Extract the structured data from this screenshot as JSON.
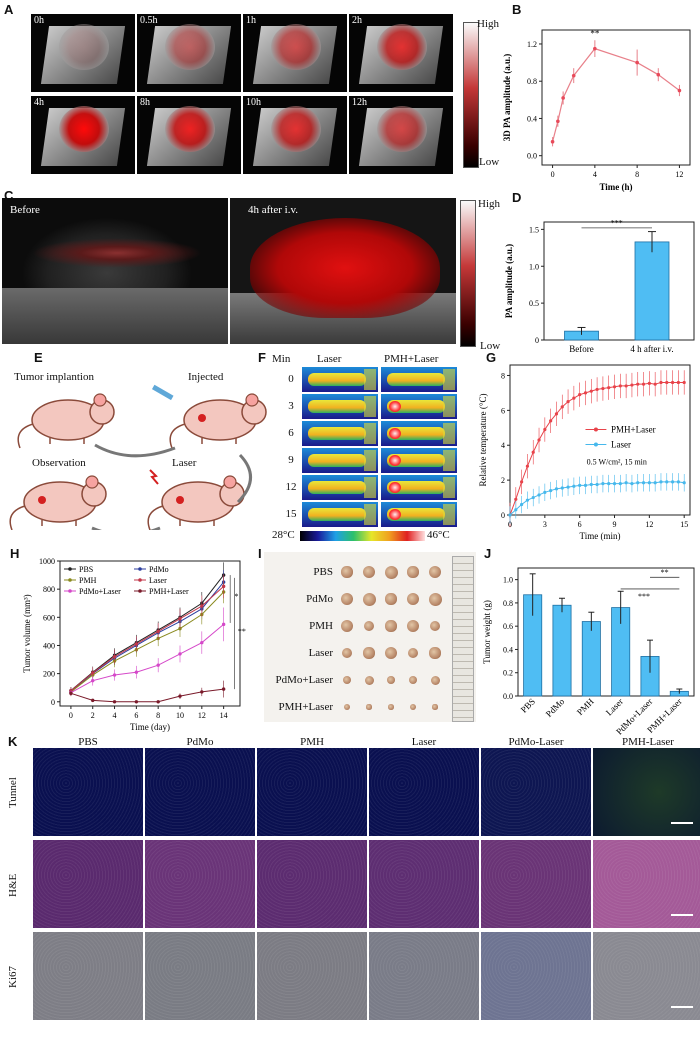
{
  "panel_letters": {
    "A": "A",
    "B": "B",
    "C": "C",
    "D": "D",
    "E": "E",
    "F": "F",
    "G": "G",
    "H": "H",
    "I": "I",
    "J": "J",
    "K": "K"
  },
  "colorbar": {
    "high": "High",
    "low": "Low",
    "high2": "High",
    "low2": "Low"
  },
  "panelA": {
    "times": [
      "0h",
      "0.5h",
      "1h",
      "2h",
      "4h",
      "8h",
      "10h",
      "12h"
    ]
  },
  "panelC": {
    "before": "Before",
    "after": "4h after i.v."
  },
  "panelE": {
    "tumor": "Tumor implantion",
    "injected": "Injected",
    "observation": "Observation",
    "laser": "Laser"
  },
  "panelF": {
    "min": "Min",
    "col1": "Laser",
    "col2": "PMH+Laser",
    "rows": [
      "0",
      "3",
      "6",
      "9",
      "12",
      "15"
    ],
    "tmin": "28°C",
    "tmax": "46°C"
  },
  "panelI": {
    "rows": [
      "PBS",
      "PdMo",
      "PMH",
      "Laser",
      "PdMo+Laser",
      "PMH+Laser"
    ]
  },
  "panelK": {
    "cols": [
      "PBS",
      "PdMo",
      "PMH",
      "Laser",
      "PdMo-Laser",
      "PMH-Laser"
    ],
    "rows": [
      "Tunnel",
      "H&E",
      "Ki67"
    ]
  },
  "chart_data": [
    {
      "panel": "B",
      "type": "line",
      "xlabel": "Time (h)",
      "ylabel": "3D PA amplitude (a.u.)",
      "x": [
        0,
        0.5,
        1,
        2,
        4,
        8,
        10,
        12
      ],
      "y": [
        0.15,
        0.37,
        0.62,
        0.86,
        1.15,
        1.0,
        0.87,
        0.7
      ],
      "err": [
        0.05,
        0.06,
        0.07,
        0.08,
        0.09,
        0.14,
        0.07,
        0.06
      ],
      "xlim": [
        -1,
        13
      ],
      "ylim": [
        -0.1,
        1.35
      ],
      "xticks": [
        "0",
        "4",
        "8",
        "12"
      ],
      "yticks": [
        "0.0",
        "0.4",
        "0.8",
        "1.2"
      ],
      "annotation": "**"
    },
    {
      "panel": "D",
      "type": "bar",
      "categories": [
        "Before",
        "4 h after i.v."
      ],
      "values": [
        0.12,
        1.33
      ],
      "err": [
        0.05,
        0.14
      ],
      "ylabel": "PA amplitude (a.u.)",
      "ylim": [
        0,
        1.6
      ],
      "yticks": [
        "0",
        "0.5",
        "1.0",
        "1.5"
      ],
      "annotation": "***"
    },
    {
      "panel": "G",
      "type": "line",
      "xlabel": "Time (min)",
      "ylabel": "Relative temperature (°C)",
      "note": "0.5 W/cm², 15 min",
      "xlim": [
        0,
        15.5
      ],
      "ylim": [
        0,
        8.6
      ],
      "xticks": [
        "0",
        "3",
        "6",
        "9",
        "12",
        "15"
      ],
      "yticks": [
        "0",
        "2",
        "4",
        "6",
        "8"
      ],
      "series": [
        {
          "name": "PMH+Laser",
          "color": "#e8434a",
          "x": [
            0,
            0.5,
            1,
            1.5,
            2,
            2.5,
            3,
            3.5,
            4,
            4.5,
            5,
            5.5,
            6,
            6.5,
            7,
            7.5,
            8,
            8.5,
            9,
            9.5,
            10,
            10.5,
            11,
            11.5,
            12,
            12.5,
            13,
            13.5,
            14,
            14.5,
            15
          ],
          "y": [
            0,
            0.9,
            1.9,
            2.8,
            3.6,
            4.3,
            4.9,
            5.4,
            5.8,
            6.2,
            6.5,
            6.7,
            6.9,
            7.0,
            7.1,
            7.2,
            7.25,
            7.3,
            7.35,
            7.4,
            7.4,
            7.45,
            7.5,
            7.5,
            7.55,
            7.5,
            7.6,
            7.6,
            7.6,
            7.6,
            7.6
          ],
          "err": 0.7
        },
        {
          "name": "Laser",
          "color": "#46b8ec",
          "x": [
            0,
            0.5,
            1,
            1.5,
            2,
            2.5,
            3,
            3.5,
            4,
            4.5,
            5,
            5.5,
            6,
            6.5,
            7,
            7.5,
            8,
            8.5,
            9,
            9.5,
            10,
            10.5,
            11,
            11.5,
            12,
            12.5,
            13,
            13.5,
            14,
            14.5,
            15
          ],
          "y": [
            0,
            0.3,
            0.6,
            0.85,
            1.0,
            1.15,
            1.3,
            1.4,
            1.5,
            1.55,
            1.6,
            1.65,
            1.7,
            1.7,
            1.75,
            1.75,
            1.8,
            1.8,
            1.8,
            1.8,
            1.85,
            1.8,
            1.85,
            1.85,
            1.85,
            1.85,
            1.9,
            1.9,
            1.9,
            1.9,
            1.85
          ],
          "err": 0.5
        }
      ]
    },
    {
      "panel": "H",
      "type": "line",
      "xlabel": "Time (day)",
      "ylabel": "Tumor volume (mm³)",
      "x": [
        0,
        2,
        4,
        6,
        8,
        10,
        12,
        14
      ],
      "xlim": [
        -1,
        15.5
      ],
      "ylim": [
        -30,
        1000
      ],
      "xticks": [
        "0",
        "2",
        "4",
        "6",
        "8",
        "10",
        "12",
        "14"
      ],
      "yticks": [
        "0",
        "200",
        "400",
        "600",
        "800",
        "1000"
      ],
      "annotations": [
        "*",
        "**"
      ],
      "series": [
        {
          "name": "PBS",
          "color": "#222222",
          "marker": "square",
          "y": [
            80,
            210,
            330,
            420,
            510,
            600,
            700,
            900
          ],
          "err": [
            25,
            40,
            50,
            55,
            60,
            70,
            80,
            90
          ]
        },
        {
          "name": "PdMo",
          "color": "#2c3e9e",
          "marker": "triangle",
          "y": [
            75,
            200,
            310,
            400,
            490,
            570,
            660,
            850
          ],
          "err": [
            25,
            40,
            50,
            55,
            60,
            65,
            75,
            85
          ]
        },
        {
          "name": "PMH",
          "color": "#8a8a1e",
          "marker": "circle",
          "y": [
            70,
            190,
            290,
            370,
            450,
            520,
            620,
            780
          ],
          "err": [
            25,
            40,
            45,
            50,
            55,
            60,
            70,
            80
          ]
        },
        {
          "name": "Laser",
          "color": "#c2374a",
          "marker": "circle",
          "y": [
            78,
            205,
            320,
            410,
            500,
            590,
            680,
            820
          ],
          "err": [
            25,
            40,
            50,
            55,
            60,
            70,
            75,
            85
          ]
        },
        {
          "name": "PdMo+Laser",
          "color": "#d548c9",
          "marker": "triangle",
          "y": [
            65,
            150,
            190,
            210,
            260,
            340,
            420,
            550
          ],
          "err": [
            20,
            35,
            40,
            45,
            50,
            60,
            80,
            120
          ]
        },
        {
          "name": "PMH+Laser",
          "color": "#7a1a2a",
          "marker": "triangle",
          "y": [
            60,
            10,
            0,
            0,
            0,
            40,
            70,
            90
          ],
          "err": [
            20,
            10,
            5,
            5,
            5,
            20,
            30,
            60
          ]
        }
      ]
    },
    {
      "panel": "J",
      "type": "bar",
      "categories": [
        "PBS",
        "PdMo",
        "PMH",
        "Laser",
        "PdMo+Laser",
        "PMH+Laser"
      ],
      "values": [
        0.87,
        0.78,
        0.64,
        0.76,
        0.34,
        0.04
      ],
      "err": [
        0.18,
        0.06,
        0.08,
        0.14,
        0.14,
        0.02
      ],
      "ylabel": "Tumor weight (g)",
      "ylim": [
        0,
        1.1
      ],
      "yticks": [
        "0.0",
        "0.2",
        "0.4",
        "0.6",
        "0.8",
        "1.0"
      ],
      "annotations": [
        "**",
        "***"
      ]
    }
  ]
}
